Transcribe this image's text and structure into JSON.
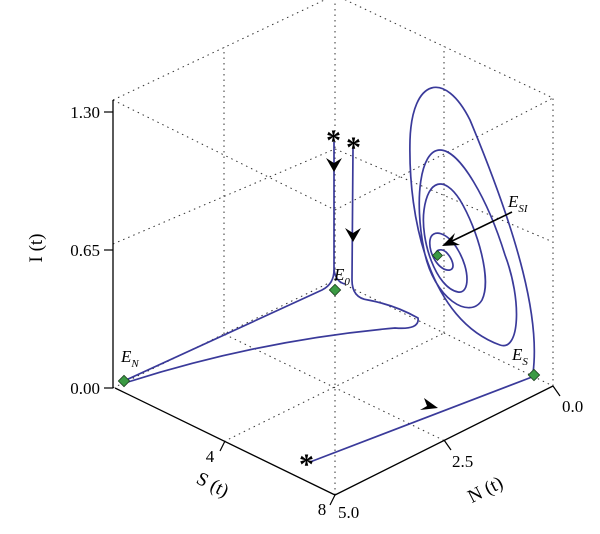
{
  "chart_data": {
    "type": "line",
    "projection": "3d",
    "axes": {
      "x": {
        "label": "N (t)",
        "ticks": [
          "0.0",
          "2.5",
          "5.0"
        ],
        "range": [
          0,
          5
        ]
      },
      "y": {
        "label": "S (t)",
        "ticks": [
          "4",
          "8"
        ],
        "range": [
          0,
          8
        ]
      },
      "z": {
        "label": "I (t)",
        "ticks": [
          "0.00",
          "0.65",
          "1.30"
        ],
        "range": [
          0,
          1.3
        ]
      }
    },
    "grid": true,
    "series_color": "#3a3a9a",
    "equilibrium_color": "#3b9a43",
    "equilibria": [
      {
        "label": "E",
        "sub": "0"
      },
      {
        "label": "E",
        "sub": "N"
      },
      {
        "label": "E",
        "sub": "S"
      },
      {
        "label": "E",
        "sub": "SI"
      }
    ],
    "start_marker": "*",
    "series": [
      {
        "values": "trajectory from high I(t) down to E_0, then to E_N"
      },
      {
        "values": "trajectory from high I(t), decaying I, moving toward E_N"
      },
      {
        "values": "trajectory starting on N-S plane, moving toward E_S"
      },
      {
        "values": "spiral trajectory converging to E_SI"
      }
    ]
  }
}
